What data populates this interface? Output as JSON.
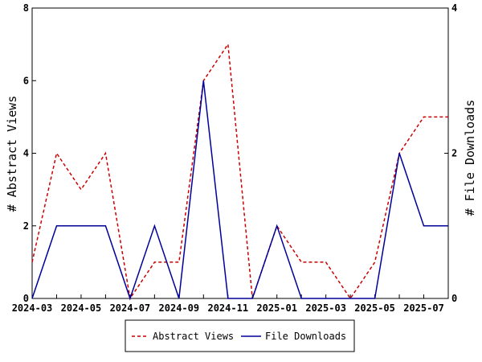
{
  "chart_data": {
    "type": "line",
    "x": [
      "2024-03",
      "2024-04",
      "2024-05",
      "2024-06",
      "2024-07",
      "2024-08",
      "2024-09",
      "2024-10",
      "2024-11",
      "2024-12",
      "2025-01",
      "2025-02",
      "2025-03",
      "2025-04",
      "2025-05",
      "2025-06",
      "2025-07",
      "2025-08"
    ],
    "x_tick_labels": [
      "2024-03",
      "2024-05",
      "2024-07",
      "2024-09",
      "2024-11",
      "2025-01",
      "2025-03",
      "2025-05",
      "2025-07"
    ],
    "series": [
      {
        "name": "Abstract Views",
        "axis": "left",
        "color": "#cc0000",
        "dash": "dashed",
        "values": [
          1,
          4,
          3,
          4,
          0,
          1,
          1,
          6,
          7,
          0,
          2,
          1,
          1,
          0,
          1,
          4,
          5,
          5
        ]
      },
      {
        "name": "File Downloads",
        "axis": "right",
        "color": "#000099",
        "dash": "solid",
        "values": [
          0,
          1,
          1,
          1,
          0,
          1,
          0,
          3,
          0,
          0,
          1,
          0,
          0,
          0,
          0,
          2,
          1,
          1
        ]
      }
    ],
    "ylabel": "# Abstract Views",
    "y2label": "# File Downloads",
    "ylim": [
      0,
      8
    ],
    "y2lim": [
      0,
      4
    ],
    "y_ticks": [
      "0",
      "2",
      "4",
      "6",
      "8"
    ],
    "y2_ticks": [
      "0",
      "2",
      "4"
    ],
    "grid": false,
    "legend_position": "bottom"
  }
}
